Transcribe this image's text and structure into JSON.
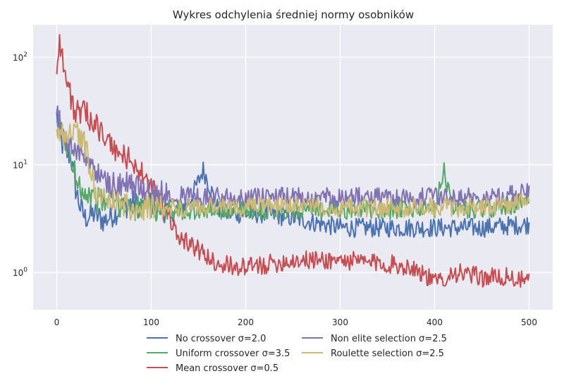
{
  "chart_data": {
    "type": "line",
    "title": "Wykres odchylenia średniej normy osobników",
    "xlabel": "",
    "ylabel": "",
    "yscale": "log",
    "xlim": [
      -25,
      525
    ],
    "ylim": [
      0.45,
      200
    ],
    "xticks": [
      0,
      100,
      200,
      300,
      400,
      500
    ],
    "yticks": [
      {
        "value": 1,
        "base": "10",
        "exp": "0"
      },
      {
        "value": 10,
        "base": "10",
        "exp": "1"
      },
      {
        "value": 100,
        "base": "10",
        "exp": "2"
      }
    ],
    "grid": true,
    "legend_position": "below, 2 columns",
    "series": [
      {
        "name": "No crossover σ=2.0",
        "color": "#4c72b0",
        "x": [
          0,
          5,
          10,
          15,
          20,
          25,
          30,
          40,
          50,
          60,
          70,
          80,
          90,
          100,
          110,
          120,
          130,
          140,
          150,
          155,
          160,
          170,
          180,
          200,
          220,
          250,
          300,
          350,
          400,
          450,
          500
        ],
        "y": [
          28,
          16,
          13,
          12,
          6,
          4,
          3.2,
          3.5,
          3.0,
          3.5,
          4.0,
          4.5,
          4.0,
          4.5,
          4.0,
          3.5,
          4.0,
          4.5,
          7.0,
          9.0,
          7.0,
          4.0,
          3.5,
          3.5,
          3.5,
          3.2,
          2.6,
          2.6,
          2.6,
          2.6,
          2.8
        ]
      },
      {
        "name": "Uniform crossover σ=3.5",
        "color": "#55a868",
        "x": [
          0,
          5,
          10,
          20,
          30,
          40,
          50,
          60,
          80,
          100,
          120,
          150,
          200,
          250,
          300,
          350,
          400,
          410,
          420,
          450,
          500
        ],
        "y": [
          20,
          20,
          16,
          8,
          5.5,
          5,
          4.5,
          4.5,
          4.0,
          4.0,
          3.8,
          3.8,
          3.8,
          3.8,
          3.8,
          3.8,
          3.8,
          8.5,
          4.0,
          3.8,
          4.5
        ]
      },
      {
        "name": "Mean crossover σ=0.5",
        "color": "#c44e52",
        "x": [
          0,
          3,
          6,
          10,
          20,
          30,
          40,
          50,
          60,
          70,
          80,
          90,
          100,
          110,
          120,
          130,
          150,
          170,
          200,
          250,
          300,
          350,
          380,
          400,
          420,
          450,
          480,
          500
        ],
        "y": [
          80,
          150,
          100,
          60,
          30,
          30,
          25,
          18,
          14,
          12,
          11,
          8,
          6,
          4.5,
          3.0,
          2.2,
          1.6,
          1.2,
          1.1,
          1.3,
          1.3,
          1.2,
          1.1,
          0.8,
          1.0,
          0.9,
          0.9,
          0.8
        ]
      },
      {
        "name": "Non elite selection σ=2.5",
        "color": "#8172b2",
        "x": [
          0,
          5,
          10,
          20,
          30,
          40,
          50,
          60,
          70,
          80,
          100,
          120,
          150,
          200,
          250,
          300,
          350,
          400,
          450,
          500
        ],
        "y": [
          30,
          22,
          16,
          14,
          12,
          9,
          7,
          6.5,
          6.5,
          6.5,
          5.5,
          5.5,
          5.0,
          5.0,
          5.0,
          5.0,
          5.0,
          5.0,
          5.0,
          5.5
        ]
      },
      {
        "name": "Roulette selection σ=2.5",
        "color": "#ccb974",
        "x": [
          0,
          5,
          10,
          20,
          30,
          40,
          50,
          60,
          80,
          100,
          150,
          200,
          250,
          300,
          350,
          400,
          450,
          500
        ],
        "y": [
          18,
          20,
          18,
          22,
          15,
          6,
          5,
          4.5,
          4.0,
          4.0,
          4.0,
          4.0,
          4.2,
          4.0,
          4.0,
          4.0,
          4.0,
          4.5
        ]
      }
    ]
  }
}
